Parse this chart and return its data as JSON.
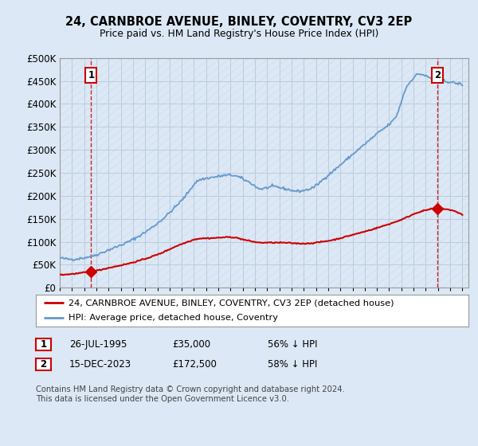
{
  "title": "24, CARNBROE AVENUE, BINLEY, COVENTRY, CV3 2EP",
  "subtitle": "Price paid vs. HM Land Registry's House Price Index (HPI)",
  "ylabel_values": [
    "£0",
    "£50K",
    "£100K",
    "£150K",
    "£200K",
    "£250K",
    "£300K",
    "£350K",
    "£400K",
    "£450K",
    "£500K"
  ],
  "ylim": [
    0,
    500000
  ],
  "yticks": [
    0,
    50000,
    100000,
    150000,
    200000,
    250000,
    300000,
    350000,
    400000,
    450000,
    500000
  ],
  "xlim_start": 1993.0,
  "xlim_end": 2026.5,
  "price_paid_color": "#cc0000",
  "hpi_color": "#6699cc",
  "point1_x": 1995.57,
  "point1_y": 35000,
  "point2_x": 2023.96,
  "point2_y": 172500,
  "legend_line1": "24, CARNBROE AVENUE, BINLEY, COVENTRY, CV3 2EP (detached house)",
  "legend_line2": "HPI: Average price, detached house, Coventry",
  "table_row1": [
    "1",
    "26-JUL-1995",
    "£35,000",
    "56% ↓ HPI"
  ],
  "table_row2": [
    "2",
    "15-DEC-2023",
    "£172,500",
    "58% ↓ HPI"
  ],
  "footer": "Contains HM Land Registry data © Crown copyright and database right 2024.\nThis data is licensed under the Open Government Licence v3.0.",
  "bg_color": "#dce8f5",
  "grid_color": "#bbccdd",
  "hpi_knots_x": [
    1993.0,
    1994.0,
    1995.5,
    1997.0,
    1999.0,
    2001.0,
    2003.0,
    2004.5,
    2005.5,
    2007.0,
    2008.5,
    2009.5,
    2010.5,
    2011.5,
    2012.5,
    2013.5,
    2015.0,
    2017.0,
    2019.0,
    2020.5,
    2021.5,
    2022.5,
    2023.5,
    2024.5,
    2025.5
  ],
  "hpi_knots_y": [
    65000,
    62000,
    68000,
    82000,
    105000,
    140000,
    190000,
    235000,
    240000,
    245000,
    230000,
    215000,
    220000,
    215000,
    210000,
    215000,
    245000,
    290000,
    335000,
    370000,
    440000,
    465000,
    455000,
    450000,
    445000
  ],
  "pp_knots_x": [
    1993.0,
    1995.57,
    1997.0,
    1999.0,
    2001.0,
    2003.0,
    2004.5,
    2005.5,
    2007.0,
    2008.5,
    2009.5,
    2011.0,
    2013.0,
    2015.0,
    2017.0,
    2019.0,
    2021.0,
    2022.5,
    2023.96,
    2025.5
  ],
  "pp_knots_y": [
    28000,
    35000,
    43000,
    55000,
    72000,
    95000,
    107000,
    108000,
    110000,
    102000,
    98000,
    98000,
    96000,
    102000,
    115000,
    130000,
    148000,
    165000,
    172500,
    165000
  ]
}
